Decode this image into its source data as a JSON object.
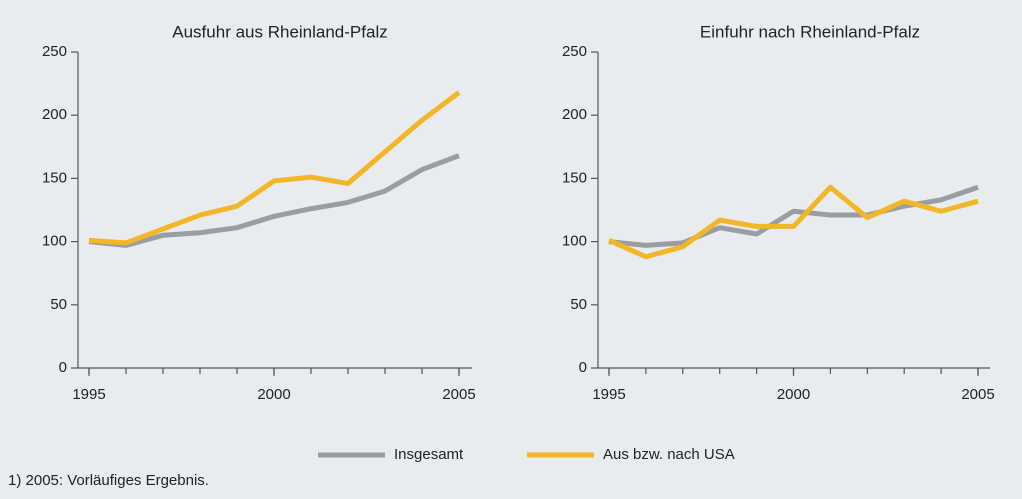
{
  "chart_data": [
    {
      "type": "line",
      "title": "Ausfuhr aus Rheinland-Pfalz",
      "x": [
        1995,
        1996,
        1997,
        1998,
        1999,
        2000,
        2001,
        2002,
        2003,
        2004,
        2005
      ],
      "series": [
        {
          "name": "Insgesamt",
          "color": "#9a9ea2",
          "values": [
            100,
            97,
            105,
            107,
            111,
            120,
            126,
            131,
            140,
            157,
            168
          ]
        },
        {
          "name": "Aus bzw. nach USA",
          "color": "#f2b627",
          "values": [
            101,
            99,
            110,
            121,
            128,
            148,
            151,
            146,
            171,
            196,
            218
          ]
        }
      ],
      "xlim": [
        1995,
        2005
      ],
      "xticks": [
        1995,
        2000,
        2005
      ],
      "ylim": [
        0,
        250
      ],
      "yticks": [
        0,
        50,
        100,
        150,
        200,
        250
      ]
    },
    {
      "type": "line",
      "title": "Einfuhr nach Rheinland-Pfalz",
      "x": [
        1995,
        1996,
        1997,
        1998,
        1999,
        2000,
        2001,
        2002,
        2003,
        2004,
        2005
      ],
      "series": [
        {
          "name": "Insgesamt",
          "color": "#9a9ea2",
          "values": [
            100,
            97,
            99,
            111,
            106,
            124,
            121,
            121,
            128,
            133,
            143
          ]
        },
        {
          "name": "Aus bzw. nach USA",
          "color": "#f2b627",
          "values": [
            101,
            88,
            96,
            117,
            112,
            112,
            143,
            119,
            132,
            124,
            132
          ]
        }
      ],
      "xlim": [
        1995,
        2005
      ],
      "xticks": [
        1995,
        2000,
        2005
      ],
      "ylim": [
        0,
        250
      ],
      "yticks": [
        0,
        50,
        100,
        150,
        200,
        250
      ]
    }
  ],
  "footnote": "1) 2005: Vorläufiges Ergebnis."
}
